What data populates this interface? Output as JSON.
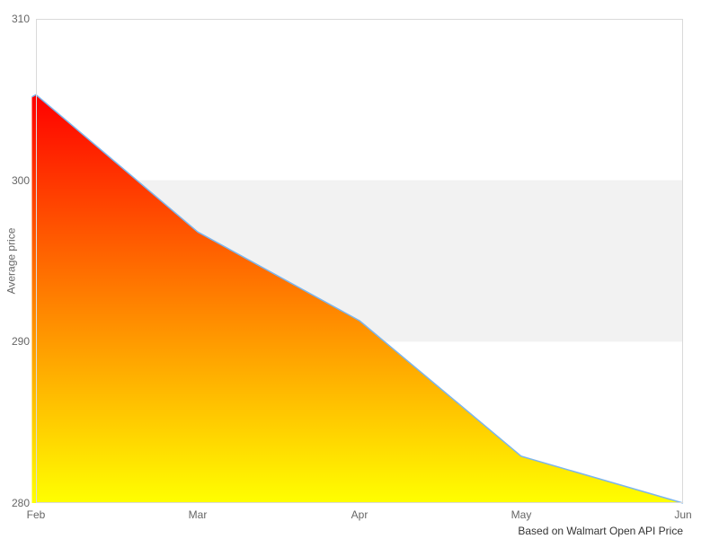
{
  "chart": {
    "y_axis": {
      "title": "Average price",
      "tick_labels": [
        "310",
        "300",
        "290",
        "280"
      ]
    },
    "x_axis": {
      "tick_labels": [
        "Feb",
        "Mar",
        "Apr",
        "May",
        "Jun"
      ]
    },
    "caption": "Based on Walmart Open API Price"
  },
  "chart_data": {
    "type": "area",
    "title": "",
    "xlabel": "",
    "ylabel": "Average price",
    "categories": [
      "Feb",
      "Mar",
      "Apr",
      "May",
      "Jun"
    ],
    "values": [
      305.3,
      296.8,
      291.3,
      282.9,
      280
    ],
    "ylim": [
      280,
      310
    ],
    "yticks": [
      280,
      290,
      300,
      310
    ],
    "grid": false,
    "legend": "none",
    "caption": "Based on Walmart Open API Price",
    "plot_band": {
      "from": 290,
      "to": 300,
      "color": "#f2f2f2"
    },
    "colors": {
      "area_gradient_top": "#ff0000",
      "area_gradient_bottom": "#ffff00",
      "line": "#7cb5ec",
      "plot_border": "#d9d9d9",
      "axis_label": "#666666",
      "caption_text": "#333333",
      "background": "#ffffff"
    }
  }
}
